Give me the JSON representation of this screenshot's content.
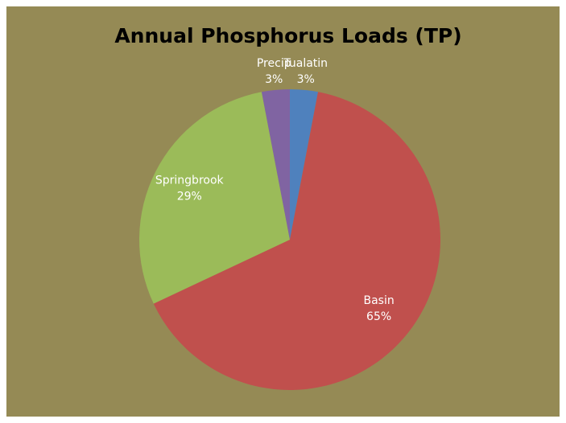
{
  "chart_data": {
    "type": "pie",
    "title": "Annual Phosphorus Loads (TP)",
    "categories": [
      "Tualatin",
      "Basin",
      "Springbrook",
      "Precip"
    ],
    "values": [
      3,
      65,
      29,
      3
    ],
    "value_labels": [
      "3%",
      "65%",
      "29%",
      "3%"
    ],
    "colors": [
      "#4f81bd",
      "#c0504d",
      "#9bbb59",
      "#8064a2"
    ]
  }
}
